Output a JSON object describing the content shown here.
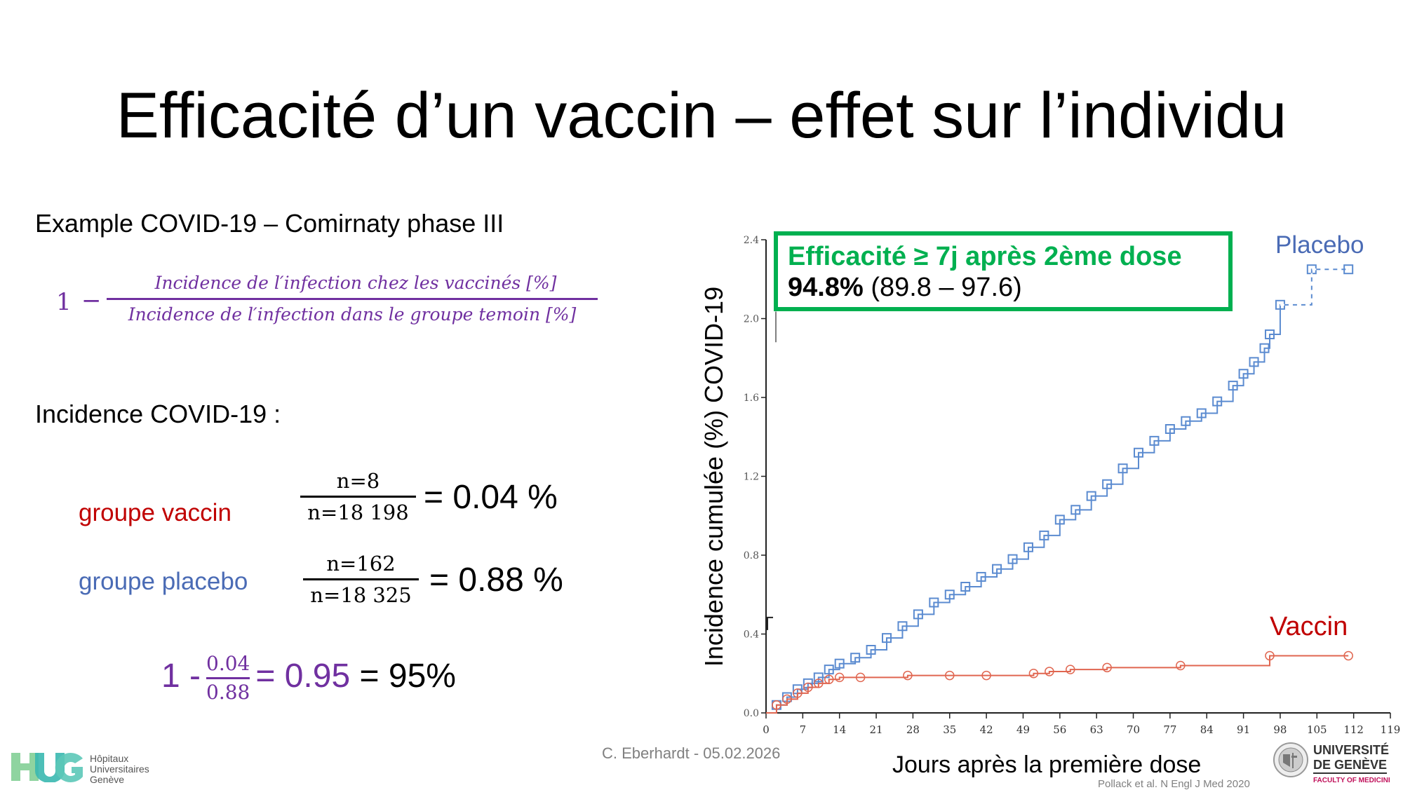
{
  "slide": {
    "title": "Efficacité d’un vaccin – effet sur l’individu",
    "subtitle": "Example COVID-19 – Comirnaty phase III",
    "formula": {
      "one": "1",
      "minus": "−",
      "numerator": "Incidence de l′infection chez les vaccinés [%]",
      "denominator": "Incidence de l′infection dans le groupe temoin [%]"
    },
    "incidence_label": "Incidence COVID-19 :",
    "groups": [
      {
        "label": "groupe vaccin",
        "color": "#c00000",
        "numerator": "n=8",
        "denominator": "n=18 198",
        "result": "= 0.04 %"
      },
      {
        "label": "groupe placebo",
        "color": "#4a6bb5",
        "numerator": "n=162",
        "denominator": "n=18 325",
        "result": "= 0.88 %"
      }
    ],
    "final": {
      "prefix": "1 -",
      "numerator": "0.04",
      "denominator": "0.88",
      "eq1": "= 0.95",
      "eq2": "= 95%"
    },
    "footer": {
      "author_date": "C. Eberhardt - 05.02.2026",
      "reference": "Pollack et al. N Engl J Med 2020",
      "hug_lines": [
        "Hôpitaux",
        "Universitaires",
        "Genève"
      ],
      "unige_lines": [
        "UNIVERSITÉ",
        "DE GENÈVE"
      ],
      "unige_faculty": "FACULTY OF MEDICINI"
    }
  },
  "callout": {
    "heading": "Efficacité ≥ 7j après 2ème dose",
    "value_bold": "94.8%",
    "value_ci": "(89.8 – 97.6)"
  },
  "colors": {
    "accent_green": "#00b050",
    "purple": "#7030a0",
    "placebo_blue": "#4a6bb5",
    "vaccine_red": "#c00000",
    "curve_blue": "#5b8bd0",
    "curve_red": "#e06650"
  },
  "chart_data": {
    "type": "line",
    "title": "",
    "xlabel": "Jours après la première dose",
    "ylabel": "Incidence cumulée (%) COVID-19",
    "xlim": [
      0,
      119
    ],
    "ylim": [
      0,
      2.4
    ],
    "x_ticks": [
      0,
      7,
      14,
      21,
      28,
      35,
      42,
      49,
      56,
      63,
      70,
      77,
      84,
      91,
      98,
      105,
      112,
      119
    ],
    "y_ticks": [
      "0.0",
      "0.4",
      "0.8",
      "1.2",
      "1.6",
      "2.0",
      "2.4"
    ],
    "grid": false,
    "legend": [
      {
        "name": "Placebo",
        "position": "top-right"
      },
      {
        "name": "Vaccin",
        "position": "right"
      }
    ],
    "annotations": [
      "Efficacité ≥ 7j après 2ème dose",
      "94.8% (89.8 – 97.6)"
    ],
    "series": [
      {
        "name": "Placebo",
        "step": true,
        "marker": "square",
        "points": [
          [
            0,
            0.0
          ],
          [
            2,
            0.04
          ],
          [
            4,
            0.08
          ],
          [
            6,
            0.12
          ],
          [
            8,
            0.15
          ],
          [
            10,
            0.18
          ],
          [
            12,
            0.22
          ],
          [
            14,
            0.25
          ],
          [
            17,
            0.28
          ],
          [
            20,
            0.32
          ],
          [
            23,
            0.38
          ],
          [
            26,
            0.44
          ],
          [
            29,
            0.5
          ],
          [
            32,
            0.56
          ],
          [
            35,
            0.6
          ],
          [
            38,
            0.64
          ],
          [
            41,
            0.69
          ],
          [
            44,
            0.73
          ],
          [
            47,
            0.78
          ],
          [
            50,
            0.84
          ],
          [
            53,
            0.9
          ],
          [
            56,
            0.98
          ],
          [
            59,
            1.03
          ],
          [
            62,
            1.1
          ],
          [
            65,
            1.16
          ],
          [
            68,
            1.24
          ],
          [
            71,
            1.32
          ],
          [
            74,
            1.38
          ],
          [
            77,
            1.44
          ],
          [
            80,
            1.48
          ],
          [
            83,
            1.52
          ],
          [
            86,
            1.58
          ],
          [
            89,
            1.66
          ],
          [
            91,
            1.72
          ],
          [
            93,
            1.78
          ],
          [
            95,
            1.85
          ],
          [
            96,
            1.92
          ],
          [
            98,
            2.07
          ],
          [
            104,
            2.25
          ],
          [
            111,
            2.25
          ]
        ]
      },
      {
        "name": "Vaccin",
        "step": true,
        "marker": "circle",
        "points": [
          [
            0,
            0.0
          ],
          [
            2,
            0.04
          ],
          [
            4,
            0.07
          ],
          [
            6,
            0.1
          ],
          [
            8,
            0.13
          ],
          [
            10,
            0.15
          ],
          [
            12,
            0.17
          ],
          [
            14,
            0.18
          ],
          [
            18,
            0.18
          ],
          [
            27,
            0.19
          ],
          [
            35,
            0.19
          ],
          [
            42,
            0.19
          ],
          [
            51,
            0.2
          ],
          [
            54,
            0.21
          ],
          [
            58,
            0.22
          ],
          [
            65,
            0.23
          ],
          [
            79,
            0.24
          ],
          [
            96,
            0.29
          ],
          [
            111,
            0.29
          ]
        ]
      }
    ]
  }
}
